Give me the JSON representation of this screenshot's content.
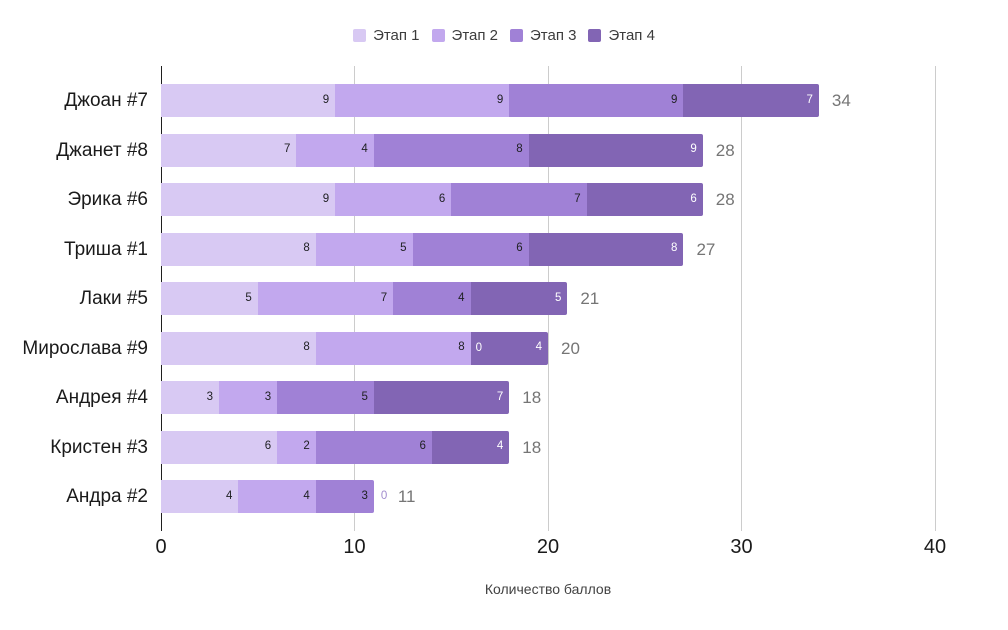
{
  "chart_data": {
    "type": "bar",
    "orientation": "horizontal",
    "stacked": true,
    "xlabel": "Количество баллов",
    "xlim": [
      0,
      40
    ],
    "xticks": [
      0,
      10,
      20,
      30,
      40
    ],
    "grid": true,
    "legend_position": "top",
    "categories": [
      "Джоан #7",
      "Джанет #8",
      "Эрика #6",
      "Триша #1",
      "Лаки #5",
      "Мирослава #9",
      "Андрея #4",
      "Кристен #3",
      "Андра #2"
    ],
    "series": [
      {
        "name": "Этап 1",
        "color": "#d8c9f3",
        "label_color": "#202124",
        "values": [
          9,
          7,
          9,
          8,
          5,
          8,
          3,
          6,
          4
        ]
      },
      {
        "name": "Этап 2",
        "color": "#c2a8ee",
        "label_color": "#202124",
        "values": [
          9,
          4,
          6,
          5,
          7,
          8,
          3,
          2,
          4
        ]
      },
      {
        "name": "Этап 3",
        "color": "#a081d6",
        "label_color": "#202124",
        "values": [
          9,
          8,
          7,
          6,
          4,
          0,
          5,
          6,
          3
        ]
      },
      {
        "name": "Этап 4",
        "color": "#8265b4",
        "label_color": "#ffffff",
        "values": [
          7,
          9,
          6,
          8,
          5,
          4,
          7,
          4,
          0
        ]
      }
    ],
    "totals": [
      34,
      28,
      28,
      27,
      21,
      20,
      18,
      18,
      11
    ],
    "colors": {
      "gridline": "#cccccc",
      "baseline": "#1f1f1f",
      "total_label": "#757575",
      "zero_label_inside": "#ffffff",
      "zero_label_outside": "#a18bce",
      "axis_tick_label": "#1a1a1a",
      "category_label": "#1a1a1a"
    }
  }
}
